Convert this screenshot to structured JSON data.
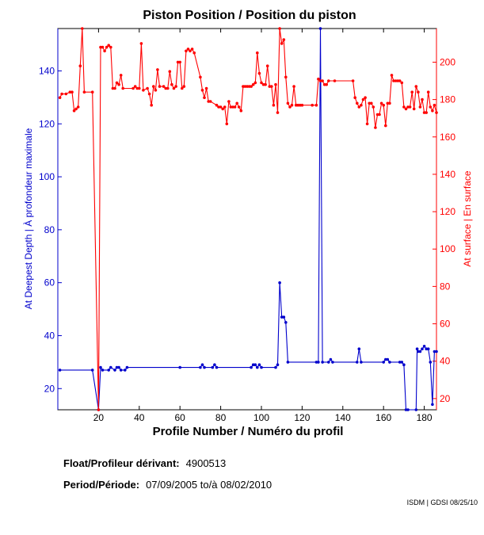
{
  "chart_data": {
    "type": "line",
    "title": "Piston Position / Position du piston",
    "xlabel": "Profile Number / Numéro du profil",
    "ylabel_left": "At Deepest Depth | À profondeur maximale",
    "ylabel_right": "At surface | En surface",
    "xlim": [
      0,
      186
    ],
    "ylim_left": [
      12,
      156
    ],
    "ylim_right": [
      14,
      218
    ],
    "x_ticks": [
      20,
      40,
      60,
      80,
      100,
      120,
      140,
      160,
      180
    ],
    "y_left_ticks": [
      20,
      40,
      60,
      80,
      100,
      120,
      140
    ],
    "y_right_ticks": [
      20,
      40,
      60,
      80,
      100,
      120,
      140,
      160,
      180,
      200
    ],
    "grid": false,
    "series": [
      {
        "axis": "left",
        "color": "#0000cc",
        "points": [
          [
            1,
            27
          ],
          [
            17,
            27
          ],
          [
            20,
            12
          ],
          [
            21,
            28
          ],
          [
            22,
            27
          ],
          [
            25,
            27
          ],
          [
            26,
            28
          ],
          [
            28,
            27
          ],
          [
            29,
            28
          ],
          [
            30,
            28
          ],
          [
            31,
            27
          ],
          [
            33,
            27
          ],
          [
            34,
            28
          ],
          [
            60,
            28
          ],
          [
            70,
            28
          ],
          [
            71,
            29
          ],
          [
            72,
            28
          ],
          [
            76,
            28
          ],
          [
            77,
            29
          ],
          [
            78,
            28
          ],
          [
            95,
            28
          ],
          [
            96,
            29
          ],
          [
            97,
            29
          ],
          [
            98,
            28
          ],
          [
            99,
            29
          ],
          [
            100,
            28
          ],
          [
            107,
            28
          ],
          [
            108,
            29
          ],
          [
            109,
            60
          ],
          [
            110,
            47
          ],
          [
            111,
            47
          ],
          [
            112,
            45
          ],
          [
            113,
            30
          ],
          [
            127,
            30
          ],
          [
            128,
            30
          ],
          [
            129,
            156
          ],
          [
            130,
            30
          ],
          [
            133,
            30
          ],
          [
            134,
            31
          ],
          [
            135,
            30
          ],
          [
            147,
            30
          ],
          [
            148,
            35
          ],
          [
            149,
            30
          ],
          [
            160,
            30
          ],
          [
            161,
            31
          ],
          [
            162,
            31
          ],
          [
            163,
            30
          ],
          [
            168,
            30
          ],
          [
            169,
            30
          ],
          [
            170,
            29
          ],
          [
            171,
            12
          ],
          [
            172,
            12
          ],
          [
            176,
            12
          ],
          [
            176.5,
            35
          ],
          [
            177,
            34
          ],
          [
            178,
            34
          ],
          [
            179,
            35
          ],
          [
            180,
            36
          ],
          [
            181,
            35
          ],
          [
            182,
            35
          ],
          [
            183,
            30
          ],
          [
            184,
            14
          ],
          [
            185,
            34
          ],
          [
            186,
            34
          ]
        ]
      },
      {
        "axis": "right",
        "color": "#ff0000",
        "points": [
          [
            1,
            181
          ],
          [
            2,
            183
          ],
          [
            4,
            183
          ],
          [
            6,
            184
          ],
          [
            7,
            184
          ],
          [
            8,
            174
          ],
          [
            9,
            175
          ],
          [
            10,
            176
          ],
          [
            11,
            198
          ],
          [
            12,
            218
          ],
          [
            13,
            184
          ],
          [
            17,
            184
          ],
          [
            20,
            14
          ],
          [
            21,
            208
          ],
          [
            22,
            208
          ],
          [
            23,
            206
          ],
          [
            24,
            208
          ],
          [
            25,
            209
          ],
          [
            26,
            208
          ],
          [
            27,
            186
          ],
          [
            28,
            186
          ],
          [
            29,
            189
          ],
          [
            30,
            188
          ],
          [
            31,
            193
          ],
          [
            32,
            186
          ],
          [
            37,
            186
          ],
          [
            38,
            187
          ],
          [
            39,
            186
          ],
          [
            40,
            186
          ],
          [
            41,
            210
          ],
          [
            42,
            185
          ],
          [
            44,
            186
          ],
          [
            45,
            183
          ],
          [
            46,
            177
          ],
          [
            47,
            187
          ],
          [
            48,
            185
          ],
          [
            49,
            196
          ],
          [
            50,
            187
          ],
          [
            52,
            187
          ],
          [
            53,
            186
          ],
          [
            54,
            186
          ],
          [
            55,
            195
          ],
          [
            56,
            188
          ],
          [
            57,
            186
          ],
          [
            58,
            187
          ],
          [
            59,
            200
          ],
          [
            60,
            200
          ],
          [
            61,
            186
          ],
          [
            62,
            187
          ],
          [
            63,
            206
          ],
          [
            64,
            207
          ],
          [
            65,
            206
          ],
          [
            66,
            207
          ],
          [
            67,
            205
          ],
          [
            70,
            192
          ],
          [
            71,
            185
          ],
          [
            72,
            181
          ],
          [
            73,
            186
          ],
          [
            74,
            179
          ],
          [
            75,
            179
          ],
          [
            78,
            177
          ],
          [
            79,
            176
          ],
          [
            80,
            176
          ],
          [
            81,
            175
          ],
          [
            82,
            176
          ],
          [
            83,
            167
          ],
          [
            84,
            179
          ],
          [
            85,
            176
          ],
          [
            86,
            176
          ],
          [
            87,
            176
          ],
          [
            88,
            178
          ],
          [
            89,
            176
          ],
          [
            90,
            174
          ],
          [
            91,
            187
          ],
          [
            92,
            187
          ],
          [
            93,
            187
          ],
          [
            94,
            187
          ],
          [
            95,
            187
          ],
          [
            96,
            188
          ],
          [
            97,
            189
          ],
          [
            98,
            205
          ],
          [
            99,
            194
          ],
          [
            100,
            189
          ],
          [
            101,
            188
          ],
          [
            102,
            188
          ],
          [
            103,
            198
          ],
          [
            104,
            187
          ],
          [
            105,
            187
          ],
          [
            106,
            177
          ],
          [
            107,
            188
          ],
          [
            108,
            173
          ],
          [
            109,
            218
          ],
          [
            110,
            210
          ],
          [
            111,
            212
          ],
          [
            112,
            192
          ],
          [
            113,
            178
          ],
          [
            114,
            176
          ],
          [
            115,
            177
          ],
          [
            116,
            187
          ],
          [
            117,
            177
          ],
          [
            118,
            177
          ],
          [
            119,
            177
          ],
          [
            120,
            177
          ],
          [
            125,
            177
          ],
          [
            127,
            177
          ],
          [
            128,
            191
          ],
          [
            129,
            190
          ],
          [
            130,
            190
          ],
          [
            131,
            188
          ],
          [
            132,
            188
          ],
          [
            133,
            190
          ],
          [
            136,
            190
          ],
          [
            145,
            190
          ],
          [
            146,
            181
          ],
          [
            147,
            178
          ],
          [
            148,
            176
          ],
          [
            149,
            177
          ],
          [
            150,
            180
          ],
          [
            151,
            181
          ],
          [
            152,
            167
          ],
          [
            153,
            178
          ],
          [
            154,
            178
          ],
          [
            155,
            176
          ],
          [
            156,
            165
          ],
          [
            157,
            172
          ],
          [
            158,
            172
          ],
          [
            159,
            178
          ],
          [
            160,
            177
          ],
          [
            161,
            166
          ],
          [
            162,
            178
          ],
          [
            163,
            178
          ],
          [
            164,
            193
          ],
          [
            165,
            190
          ],
          [
            166,
            190
          ],
          [
            167,
            190
          ],
          [
            168,
            190
          ],
          [
            169,
            189
          ],
          [
            170,
            176
          ],
          [
            171,
            175
          ],
          [
            172,
            176
          ],
          [
            173,
            176
          ],
          [
            174,
            184
          ],
          [
            175,
            175
          ],
          [
            176,
            187
          ],
          [
            177,
            184
          ],
          [
            178,
            176
          ],
          [
            179,
            180
          ],
          [
            180,
            173
          ],
          [
            181,
            173
          ],
          [
            182,
            184
          ],
          [
            183,
            176
          ],
          [
            184,
            174
          ],
          [
            185,
            177
          ],
          [
            186,
            173
          ]
        ]
      }
    ]
  },
  "float": {
    "label": "Float/Profileur dérivant:",
    "value": "4900513"
  },
  "period": {
    "label": "Period/Période:",
    "start": "07/09/2005",
    "sep": "to/à",
    "end": "08/02/2010"
  },
  "credit": "ISDM | GDSI 08/25/10"
}
